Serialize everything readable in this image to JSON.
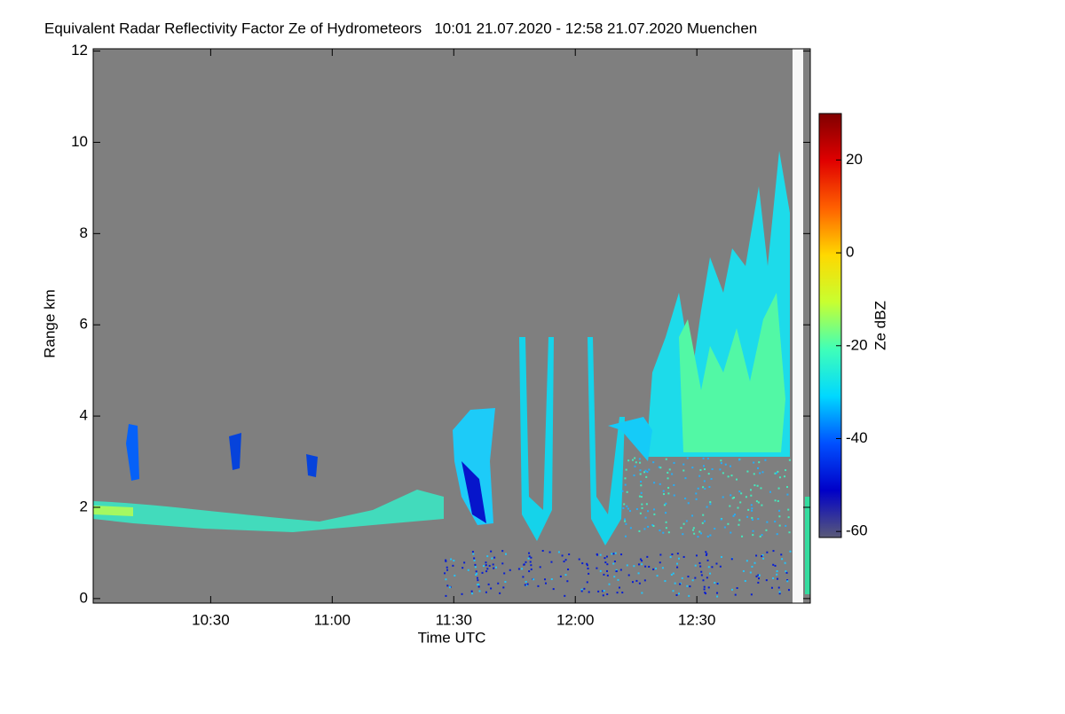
{
  "chart_data": {
    "type": "time-height",
    "title": "Equivalent Radar Reflectivity Factor Ze of Hydrometeors   10:01 21.07.2020 - 12:58 21.07.2020 Muenchen",
    "xlabel": "Time UTC",
    "ylabel": "Range km",
    "xlim": [
      601,
      778
    ],
    "xticks": [
      {
        "value": 630,
        "label": "10:30"
      },
      {
        "value": 660,
        "label": "11:00"
      },
      {
        "value": 690,
        "label": "11:30"
      },
      {
        "value": 720,
        "label": "12:00"
      },
      {
        "value": 750,
        "label": "12:30"
      }
    ],
    "ylim": [
      -0.1,
      12.05
    ],
    "yticks": [
      0,
      2,
      4,
      6,
      8,
      10,
      12
    ],
    "background_color": "#7f7f7f",
    "colorbar": {
      "label": "Ze dBZ",
      "lim": [
        -61.3,
        30
      ],
      "ticks": [
        -60,
        -40,
        -20,
        0,
        20
      ],
      "colors": [
        "#5a5a78",
        "#0000c8",
        "#0050ff",
        "#00d8ff",
        "#40ffb8",
        "#c8ff30",
        "#ffd800",
        "#ff6000",
        "#e00000",
        "#800000"
      ]
    }
  }
}
